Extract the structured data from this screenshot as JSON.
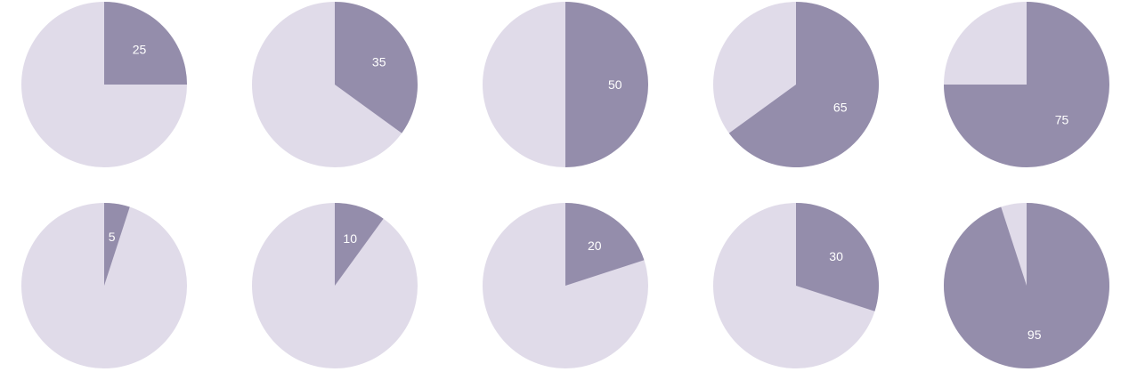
{
  "chart_data": {
    "type": "pie",
    "colors": {
      "filled": "#948dab",
      "remainder": "#e0dbe9"
    },
    "charts": [
      {
        "value": 25,
        "label": "25"
      },
      {
        "value": 35,
        "label": "35"
      },
      {
        "value": 50,
        "label": "50"
      },
      {
        "value": 65,
        "label": "65"
      },
      {
        "value": 75,
        "label": "75"
      },
      {
        "value": 5,
        "label": "5"
      },
      {
        "value": 10,
        "label": "10"
      },
      {
        "value": 20,
        "label": "20"
      },
      {
        "value": 30,
        "label": "30"
      },
      {
        "value": 95,
        "label": "95"
      }
    ]
  }
}
